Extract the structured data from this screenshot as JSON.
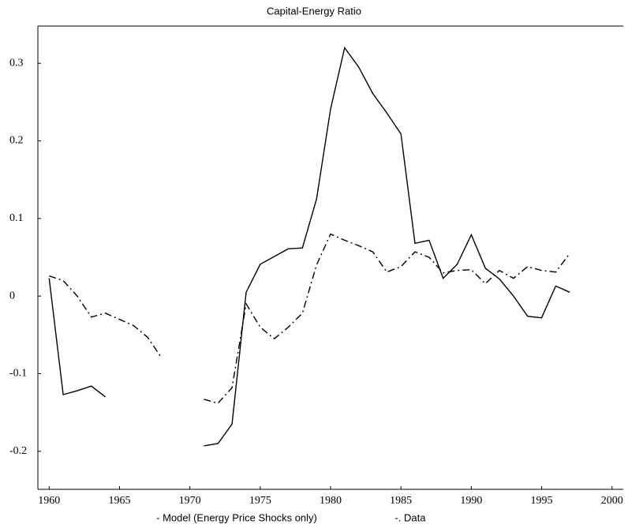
{
  "chart_data": {
    "type": "line",
    "title": "Capital-Energy Ratio",
    "x": [
      1960,
      1961,
      1962,
      1963,
      1964,
      1965,
      1966,
      1967,
      1968,
      1969,
      1970,
      1971,
      1972,
      1973,
      1974,
      1975,
      1976,
      1977,
      1978,
      1979,
      1980,
      1981,
      1982,
      1983,
      1984,
      1985,
      1986,
      1987,
      1988,
      1989,
      1990,
      1991,
      1992,
      1993,
      1994,
      1995,
      1996,
      1997
    ],
    "series": [
      {
        "name": "- Model (Energy Price Shocks only)",
        "color": "#000000",
        "dash": "solid",
        "values": [
          0.023,
          -0.127,
          -0.122,
          -0.116,
          -0.13,
          null,
          null,
          null,
          null,
          null,
          null,
          -0.193,
          -0.19,
          -0.165,
          0.005,
          0.041,
          0.051,
          0.061,
          0.062,
          0.125,
          0.241,
          0.32,
          0.295,
          0.261,
          0.236,
          0.209,
          0.068,
          0.072,
          0.023,
          0.041,
          0.079,
          0.036,
          0.022,
          0,
          -0.026,
          -0.028,
          0.013,
          0.005
        ]
      },
      {
        "name": "-. Data",
        "color": "#000000",
        "dash": "dashdot",
        "values": [
          0.026,
          0.02,
          0,
          -0.027,
          -0.022,
          -0.03,
          -0.038,
          -0.053,
          -0.08,
          null,
          null,
          -0.133,
          -0.138,
          -0.118,
          -0.01,
          -0.04,
          -0.055,
          -0.04,
          -0.022,
          0.04,
          0.08,
          0.072,
          0.065,
          0.057,
          0.031,
          0.038,
          0.057,
          0.05,
          0.03,
          0.033,
          0.034,
          0.016,
          0.033,
          0.023,
          0.038,
          0.033,
          0.031,
          0.055
        ]
      }
    ],
    "xlim": [
      1959.2,
      2000.8
    ],
    "xticks": [
      1960,
      1965,
      1970,
      1975,
      1980,
      1985,
      1990,
      1995,
      2000
    ],
    "ylim": [
      -0.249,
      0.348
    ],
    "yticks": [
      -0.2,
      -0.1,
      0,
      0.1,
      0.2,
      0.3
    ]
  }
}
